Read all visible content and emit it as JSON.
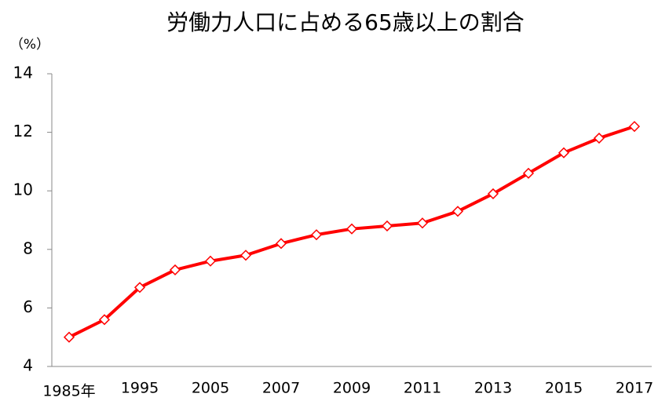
{
  "chart_data": {
    "type": "line",
    "title": "労働力人口に占める65歳以上の割合",
    "y_label": "（%）",
    "categories": [
      "1985年",
      null,
      "1995",
      null,
      "2005",
      null,
      "2007",
      null,
      "2009",
      null,
      "2011",
      null,
      "2013",
      null,
      "2015",
      null,
      "2017"
    ],
    "series": [
      {
        "name": "65歳以上の割合",
        "color": "#ff0000",
        "values": [
          5.0,
          5.6,
          6.7,
          7.3,
          7.6,
          7.8,
          8.2,
          8.5,
          8.7,
          8.8,
          8.9,
          9.3,
          9.9,
          10.6,
          11.3,
          11.8,
          12.2
        ]
      }
    ],
    "ylim": [
      4,
      14
    ],
    "yticks": [
      4,
      6,
      8,
      10,
      12,
      14
    ],
    "grid": false
  }
}
